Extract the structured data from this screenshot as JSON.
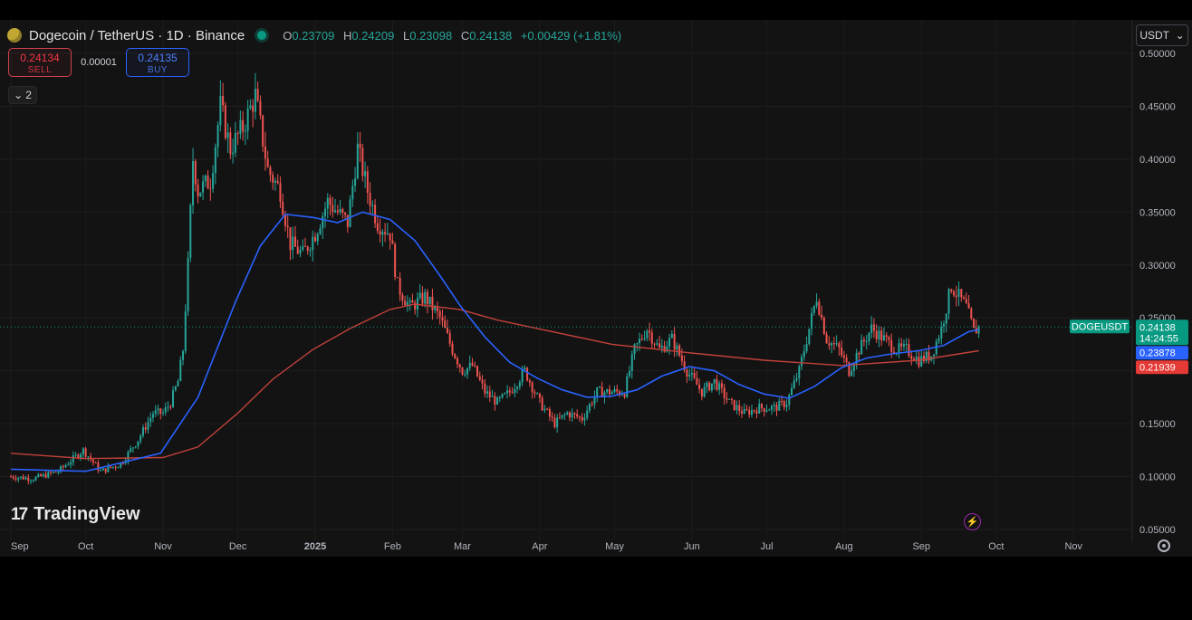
{
  "header": {
    "symbol_title": "Dogecoin / TetherUS · 1D · Binance",
    "ohlc": {
      "o_label": "O",
      "o": "0.23709",
      "h_label": "H",
      "h": "0.24209",
      "l_label": "L",
      "l": "0.23098",
      "c_label": "C",
      "c": "0.24138",
      "change": "+0.00429 (+1.81%)"
    }
  },
  "trade": {
    "sell_price": "0.24134",
    "sell_label": "SELL",
    "spread": "0.00001",
    "buy_price": "0.24135",
    "buy_label": "BUY"
  },
  "indicators_toggle": {
    "count": "2",
    "icon": "chevron-down-icon"
  },
  "currency": {
    "label": "USDT",
    "icon": "chevron-down-icon"
  },
  "brand": {
    "logo": "17",
    "name": "TradingView"
  },
  "colors": {
    "up": "#26a69a",
    "down": "#ef5350",
    "ma_fast": "#2962ff",
    "ma_slow": "#c2413a",
    "last_price_bg": "#089981",
    "ma_fast_label": "#2962ff",
    "ma_slow_label": "#e53935"
  },
  "price_labels": {
    "symbol_tag": "DOGEUSDT",
    "last_price": "0.24138",
    "countdown": "14:24:55",
    "ma_fast_value": "0.23878",
    "ma_slow_value": "0.21939"
  },
  "chart_data": {
    "type": "candlestick",
    "yaxis": {
      "ticks": [
        "0.50000",
        "0.45000",
        "0.40000",
        "0.35000",
        "0.30000",
        "0.25000",
        "0.15000",
        "0.10000",
        "0.05000"
      ],
      "ylim": [
        0.05,
        0.5
      ]
    },
    "xaxis": {
      "ticks": [
        "Sep",
        "Oct",
        "Nov",
        "Dec",
        "2025",
        "Feb",
        "Mar",
        "Apr",
        "May",
        "Jun",
        "Jul",
        "Aug",
        "Sep",
        "Oct",
        "Nov"
      ]
    },
    "grid": true,
    "price_path": [
      [
        "2024-09-01",
        0.1
      ],
      [
        "2024-09-10",
        0.098
      ],
      [
        "2024-09-20",
        0.105
      ],
      [
        "2024-09-30",
        0.125
      ],
      [
        "2024-10-07",
        0.105
      ],
      [
        "2024-10-15",
        0.112
      ],
      [
        "2024-10-22",
        0.135
      ],
      [
        "2024-10-28",
        0.16
      ],
      [
        "2024-11-01",
        0.16
      ],
      [
        "2024-11-04",
        0.17
      ],
      [
        "2024-11-07",
        0.19
      ],
      [
        "2024-11-09",
        0.22
      ],
      [
        "2024-11-11",
        0.3
      ],
      [
        "2024-11-13",
        0.4
      ],
      [
        "2024-11-15",
        0.37
      ],
      [
        "2024-11-20",
        0.38
      ],
      [
        "2024-11-24",
        0.45
      ],
      [
        "2024-11-28",
        0.41
      ],
      [
        "2024-12-03",
        0.43
      ],
      [
        "2024-12-08",
        0.46
      ],
      [
        "2024-12-13",
        0.39
      ],
      [
        "2024-12-18",
        0.37
      ],
      [
        "2024-12-22",
        0.32
      ],
      [
        "2024-12-27",
        0.31
      ],
      [
        "2025-01-01",
        0.33
      ],
      [
        "2025-01-06",
        0.36
      ],
      [
        "2025-01-10",
        0.35
      ],
      [
        "2025-01-14",
        0.34
      ],
      [
        "2025-01-18",
        0.41
      ],
      [
        "2025-01-22",
        0.37
      ],
      [
        "2025-01-26",
        0.34
      ],
      [
        "2025-01-31",
        0.33
      ],
      [
        "2025-02-03",
        0.28
      ],
      [
        "2025-02-08",
        0.26
      ],
      [
        "2025-02-14",
        0.27
      ],
      [
        "2025-02-20",
        0.25
      ],
      [
        "2025-02-25",
        0.22
      ],
      [
        "2025-03-01",
        0.2
      ],
      [
        "2025-03-05",
        0.205
      ],
      [
        "2025-03-10",
        0.18
      ],
      [
        "2025-03-15",
        0.17
      ],
      [
        "2025-03-20",
        0.18
      ],
      [
        "2025-03-26",
        0.2
      ],
      [
        "2025-04-01",
        0.17
      ],
      [
        "2025-04-07",
        0.15
      ],
      [
        "2025-04-12",
        0.16
      ],
      [
        "2025-04-18",
        0.155
      ],
      [
        "2025-04-24",
        0.18
      ],
      [
        "2025-04-30",
        0.18
      ],
      [
        "2025-05-05",
        0.18
      ],
      [
        "2025-05-09",
        0.22
      ],
      [
        "2025-05-14",
        0.24
      ],
      [
        "2025-05-19",
        0.22
      ],
      [
        "2025-05-24",
        0.23
      ],
      [
        "2025-05-30",
        0.2
      ],
      [
        "2025-06-05",
        0.18
      ],
      [
        "2025-06-10",
        0.19
      ],
      [
        "2025-06-16",
        0.17
      ],
      [
        "2025-06-22",
        0.16
      ],
      [
        "2025-06-28",
        0.165
      ],
      [
        "2025-07-04",
        0.165
      ],
      [
        "2025-07-09",
        0.17
      ],
      [
        "2025-07-14",
        0.2
      ],
      [
        "2025-07-19",
        0.25
      ],
      [
        "2025-07-21",
        0.27
      ],
      [
        "2025-07-25",
        0.23
      ],
      [
        "2025-07-30",
        0.22
      ],
      [
        "2025-08-03",
        0.2
      ],
      [
        "2025-08-07",
        0.22
      ],
      [
        "2025-08-12",
        0.24
      ],
      [
        "2025-08-17",
        0.23
      ],
      [
        "2025-08-22",
        0.22
      ],
      [
        "2025-08-26",
        0.22
      ],
      [
        "2025-08-31",
        0.21
      ],
      [
        "2025-09-05",
        0.215
      ],
      [
        "2025-09-09",
        0.24
      ],
      [
        "2025-09-13",
        0.28
      ],
      [
        "2025-09-16",
        0.27
      ],
      [
        "2025-09-19",
        0.26
      ],
      [
        "2025-09-22",
        0.237
      ],
      [
        "2025-09-24",
        0.241
      ]
    ],
    "ma_fast_path": [
      [
        "2024-09-01",
        0.107
      ],
      [
        "2024-10-01",
        0.105
      ],
      [
        "2024-10-31",
        0.122
      ],
      [
        "2024-11-15",
        0.175
      ],
      [
        "2024-11-30",
        0.265
      ],
      [
        "2024-12-10",
        0.318
      ],
      [
        "2024-12-20",
        0.348
      ],
      [
        "2024-12-31",
        0.345
      ],
      [
        "2025-01-10",
        0.34
      ],
      [
        "2025-01-20",
        0.35
      ],
      [
        "2025-01-31",
        0.343
      ],
      [
        "2025-02-10",
        0.323
      ],
      [
        "2025-02-20",
        0.29
      ],
      [
        "2025-02-28",
        0.262
      ],
      [
        "2025-03-10",
        0.232
      ],
      [
        "2025-03-20",
        0.208
      ],
      [
        "2025-03-31",
        0.193
      ],
      [
        "2025-04-10",
        0.182
      ],
      [
        "2025-04-20",
        0.175
      ],
      [
        "2025-04-30",
        0.176
      ],
      [
        "2025-05-10",
        0.182
      ],
      [
        "2025-05-20",
        0.195
      ],
      [
        "2025-05-31",
        0.204
      ],
      [
        "2025-06-10",
        0.2
      ],
      [
        "2025-06-20",
        0.187
      ],
      [
        "2025-06-30",
        0.178
      ],
      [
        "2025-07-10",
        0.174
      ],
      [
        "2025-07-20",
        0.185
      ],
      [
        "2025-07-31",
        0.203
      ],
      [
        "2025-08-10",
        0.212
      ],
      [
        "2025-08-20",
        0.216
      ],
      [
        "2025-08-31",
        0.219
      ],
      [
        "2025-09-10",
        0.224
      ],
      [
        "2025-09-20",
        0.237
      ],
      [
        "2025-09-24",
        0.239
      ]
    ],
    "ma_slow_path": [
      [
        "2024-09-01",
        0.122
      ],
      [
        "2024-10-01",
        0.117
      ],
      [
        "2024-11-01",
        0.118
      ],
      [
        "2024-11-15",
        0.128
      ],
      [
        "2024-12-01",
        0.16
      ],
      [
        "2024-12-15",
        0.192
      ],
      [
        "2024-12-31",
        0.22
      ],
      [
        "2025-01-15",
        0.24
      ],
      [
        "2025-01-31",
        0.258
      ],
      [
        "2025-02-10",
        0.263
      ],
      [
        "2025-02-28",
        0.258
      ],
      [
        "2025-03-15",
        0.248
      ],
      [
        "2025-03-31",
        0.24
      ],
      [
        "2025-04-30",
        0.225
      ],
      [
        "2025-05-31",
        0.217
      ],
      [
        "2025-06-30",
        0.21
      ],
      [
        "2025-07-31",
        0.205
      ],
      [
        "2025-08-31",
        0.21
      ],
      [
        "2025-09-24",
        0.219
      ]
    ]
  }
}
